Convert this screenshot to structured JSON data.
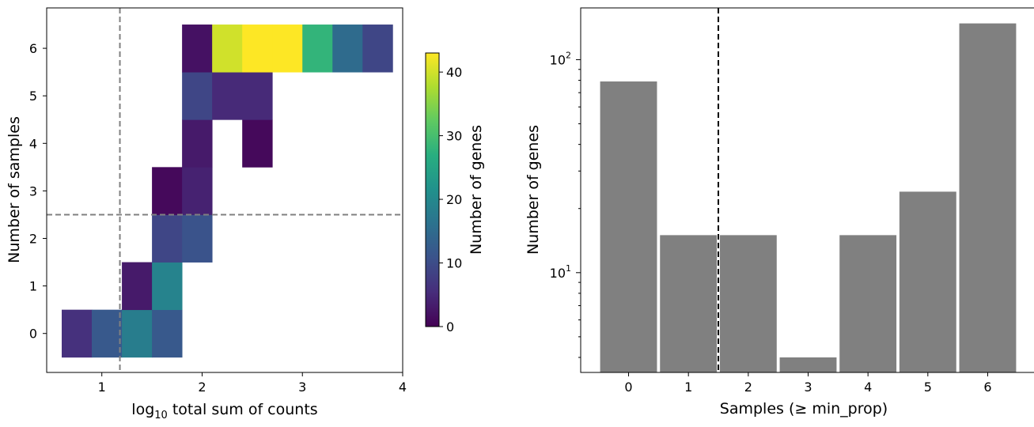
{
  "chart_data": [
    {
      "type": "heatmap",
      "xlabel_prefix": "log",
      "xlabel_sub": "10",
      "xlabel_rest": " total sum of counts",
      "ylabel": "Number of samples",
      "xlim": [
        0.45,
        4.0
      ],
      "ylim": [
        -0.82,
        6.85
      ],
      "x_ticks": [
        1,
        2,
        3,
        4
      ],
      "y_ticks": [
        0,
        1,
        2,
        3,
        4,
        5,
        6
      ],
      "x_bin_edges": [
        0.6,
        0.9,
        1.2,
        1.5,
        1.8,
        2.1,
        2.4,
        2.7,
        3.0,
        3.3,
        3.6,
        3.9
      ],
      "vline_x": 1.18,
      "hline_y": 2.5,
      "colormap": "viridis",
      "colorbar": {
        "label": "Number of genes",
        "range": [
          0,
          43
        ],
        "ticks": [
          0,
          10,
          20,
          30,
          40
        ]
      },
      "cells": [
        {
          "x0": 0.6,
          "x1": 0.9,
          "y": 0,
          "value": 6
        },
        {
          "x0": 0.9,
          "x1": 1.2,
          "y": 0,
          "value": 12
        },
        {
          "x0": 1.2,
          "x1": 1.5,
          "y": 0,
          "value": 18
        },
        {
          "x0": 1.5,
          "x1": 1.8,
          "y": 0,
          "value": 12
        },
        {
          "x0": 1.2,
          "x1": 1.5,
          "y": 1,
          "value": 3
        },
        {
          "x0": 1.5,
          "x1": 1.8,
          "y": 1,
          "value": 19
        },
        {
          "x0": 1.5,
          "x1": 1.8,
          "y": 2,
          "value": 9
        },
        {
          "x0": 1.8,
          "x1": 2.1,
          "y": 2,
          "value": 11
        },
        {
          "x0": 1.5,
          "x1": 1.8,
          "y": 3,
          "value": 1
        },
        {
          "x0": 1.8,
          "x1": 2.1,
          "y": 3,
          "value": 4
        },
        {
          "x0": 1.8,
          "x1": 2.1,
          "y": 4,
          "value": 3
        },
        {
          "x0": 2.4,
          "x1": 2.7,
          "y": 4,
          "value": 1
        },
        {
          "x0": 1.8,
          "x1": 2.1,
          "y": 5,
          "value": 9
        },
        {
          "x0": 2.1,
          "x1": 2.4,
          "y": 5,
          "value": 5
        },
        {
          "x0": 2.4,
          "x1": 2.7,
          "y": 5,
          "value": 5
        },
        {
          "x0": 1.8,
          "x1": 2.1,
          "y": 6,
          "value": 2
        },
        {
          "x0": 2.1,
          "x1": 2.4,
          "y": 6,
          "value": 40
        },
        {
          "x0": 2.4,
          "x1": 2.7,
          "y": 6,
          "value": 43
        },
        {
          "x0": 2.7,
          "x1": 3.0,
          "y": 6,
          "value": 43
        },
        {
          "x0": 3.0,
          "x1": 3.3,
          "y": 6,
          "value": 28
        },
        {
          "x0": 3.3,
          "x1": 3.6,
          "y": 6,
          "value": 15
        },
        {
          "x0": 3.6,
          "x1": 3.9,
          "y": 6,
          "value": 9
        }
      ]
    },
    {
      "type": "bar",
      "xlabel": "Samples (≥ min_prop)",
      "ylabel": "Number of genes",
      "yscale": "log",
      "categories": [
        "0",
        "1",
        "2",
        "3",
        "4",
        "5",
        "6"
      ],
      "values": [
        79,
        15,
        15,
        4,
        15,
        24,
        148
      ],
      "ylim": [
        3.4,
        175
      ],
      "y_major_ticks": [
        {
          "value": 10,
          "base": "10",
          "exp": "1"
        },
        {
          "value": 100,
          "base": "10",
          "exp": "2"
        }
      ],
      "vline_x": 1.5,
      "bar_color": "#808080",
      "grid": false
    }
  ]
}
